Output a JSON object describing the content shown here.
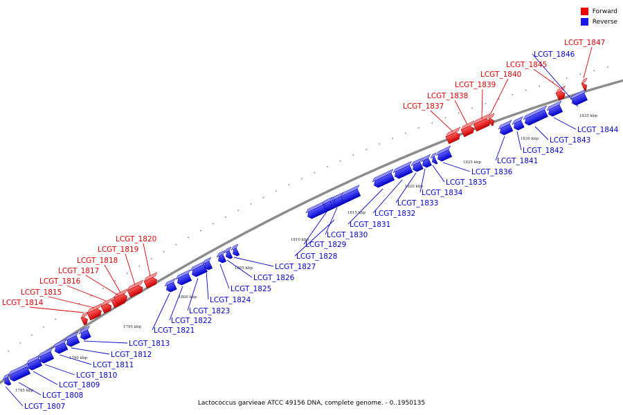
{
  "legend": {
    "forward": {
      "label": "Forward",
      "color": "#ee0000"
    },
    "reverse": {
      "label": "Reverse",
      "color": "#1a1aee"
    }
  },
  "caption": "Lactococcus garvieae ATCC 49156 DNA, complete genome. - 0..1950135",
  "scale": {
    "unit": "kbp",
    "ticks": [
      1785,
      1790,
      1795,
      1800,
      1805,
      1810,
      1815,
      1820,
      1825,
      1830,
      1835
    ]
  },
  "forward_genes": [
    "LCGT_1814",
    "LCGT_1815",
    "LCGT_1816",
    "LCGT_1817",
    "LCGT_1818",
    "LCGT_1819",
    "LCGT_1820",
    "LCGT_1837",
    "LCGT_1838",
    "LCGT_1839",
    "LCGT_1840",
    "LCGT_1845",
    "LCGT_1847"
  ],
  "reverse_genes": [
    "LCGT_1807",
    "LCGT_1808",
    "LCGT_1809",
    "LCGT_1810",
    "LCGT_1811",
    "LCGT_1812",
    "LCGT_1813",
    "LCGT_1821",
    "LCGT_1822",
    "LCGT_1823",
    "LCGT_1824",
    "LCGT_1825",
    "LCGT_1826",
    "LCGT_1827",
    "LCGT_1828",
    "LCGT_1829",
    "LCGT_1830",
    "LCGT_1831",
    "LCGT_1832",
    "LCGT_1833",
    "LCGT_1834",
    "LCGT_1835",
    "LCGT_1836",
    "LCGT_1841",
    "LCGT_1842",
    "LCGT_1843",
    "LCGT_1844",
    "LCGT_1846"
  ]
}
